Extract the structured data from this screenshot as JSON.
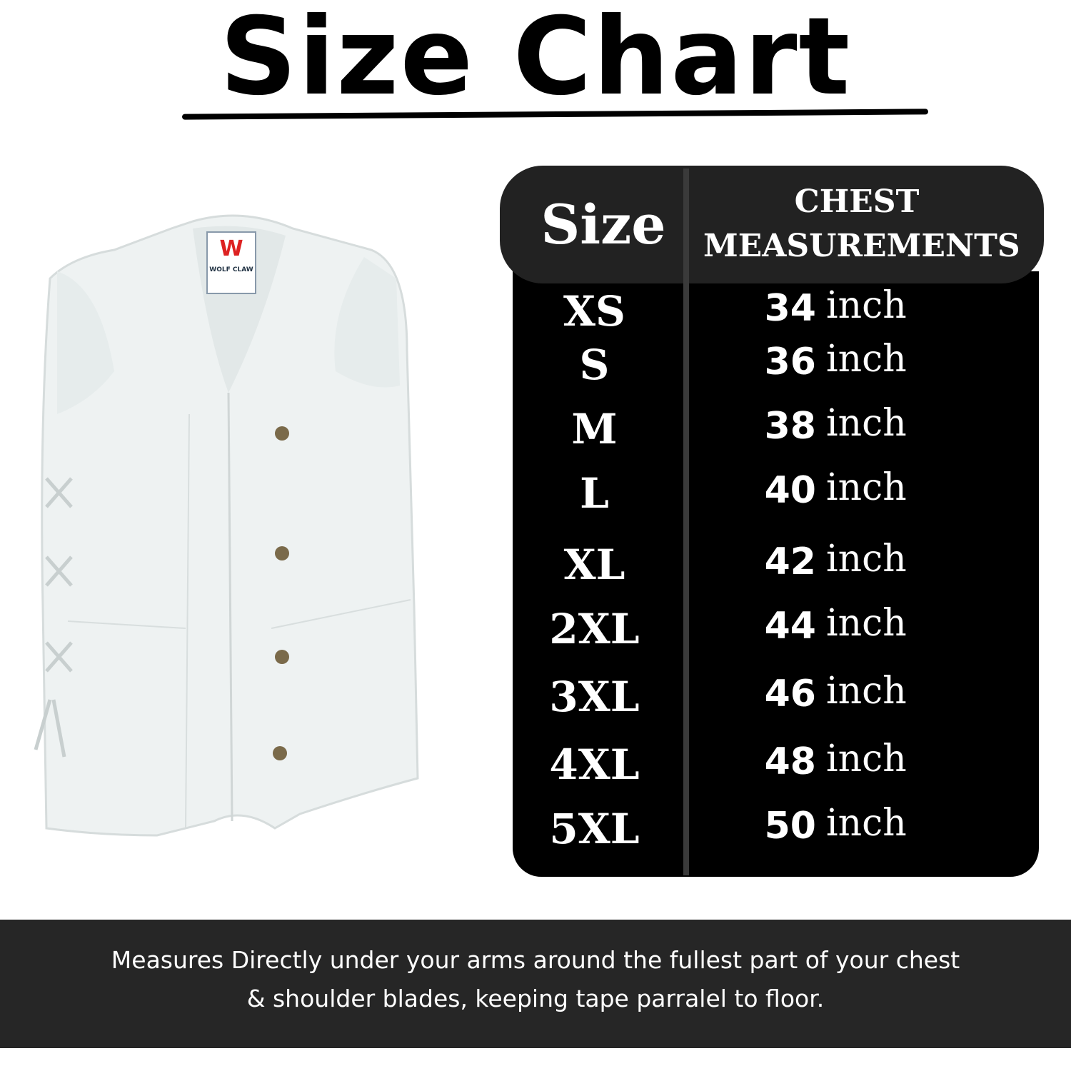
{
  "header": {
    "title": "Size Chart"
  },
  "vest": {
    "brand_letter": "W",
    "brand_name": "WOLF CLAW"
  },
  "table": {
    "columns": [
      "Size",
      "CHEST MEASUREMENTS"
    ],
    "rows": [
      [
        "XS",
        34,
        "inch"
      ],
      [
        "S",
        36,
        "inch"
      ],
      [
        "M",
        38,
        "inch"
      ],
      [
        "L",
        40,
        "inch"
      ],
      [
        "XL",
        42,
        "inch"
      ],
      [
        "2XL",
        44,
        "inch"
      ],
      [
        "3XL",
        46,
        "inch"
      ],
      [
        "4XL",
        48,
        "inch"
      ],
      [
        "5XL",
        50,
        "inch"
      ]
    ]
  },
  "footer": {
    "note": "Measures Directly under your arms around the fullest part of your chest & shoulder blades, keeping tape parralel to floor."
  }
}
